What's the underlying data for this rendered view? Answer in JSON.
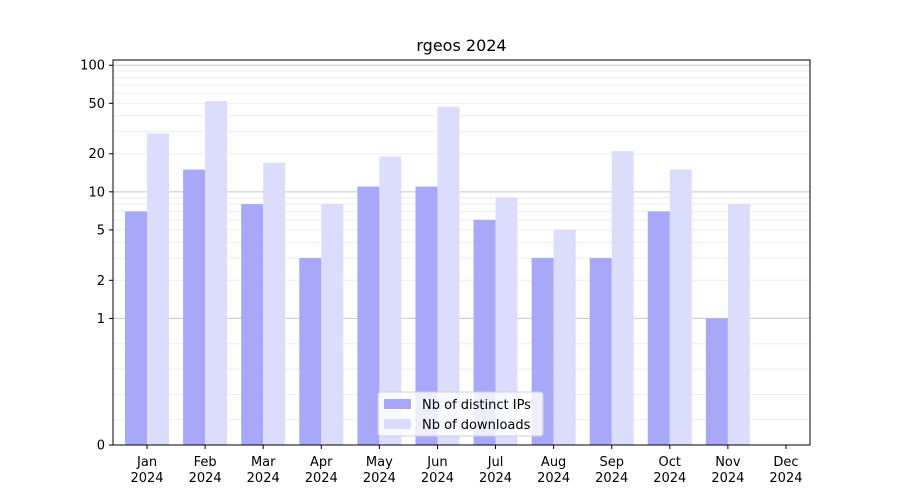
{
  "chart_data": {
    "type": "bar",
    "title": "rgeos 2024",
    "xlabel": "",
    "ylabel": "",
    "yscale": "symlog",
    "ylim": [
      0,
      110
    ],
    "yticks": [
      0,
      1,
      2,
      5,
      10,
      20,
      50,
      100
    ],
    "categories": [
      [
        "Jan",
        "2024"
      ],
      [
        "Feb",
        "2024"
      ],
      [
        "Mar",
        "2024"
      ],
      [
        "Apr",
        "2024"
      ],
      [
        "May",
        "2024"
      ],
      [
        "Jun",
        "2024"
      ],
      [
        "Jul",
        "2024"
      ],
      [
        "Aug",
        "2024"
      ],
      [
        "Sep",
        "2024"
      ],
      [
        "Oct",
        "2024"
      ],
      [
        "Nov",
        "2024"
      ],
      [
        "Dec",
        "2024"
      ]
    ],
    "series": [
      {
        "name": "Nb of distinct IPs",
        "color": "#a8a8fb",
        "values": [
          7,
          15,
          8,
          3,
          11,
          11,
          6,
          3,
          3,
          7,
          1,
          0
        ]
      },
      {
        "name": "Nb of downloads",
        "color": "#dcdcfd",
        "values": [
          29,
          52,
          17,
          8,
          19,
          47,
          9,
          5,
          21,
          15,
          8,
          0
        ]
      }
    ],
    "legend": "bottom-center",
    "grid": true
  }
}
